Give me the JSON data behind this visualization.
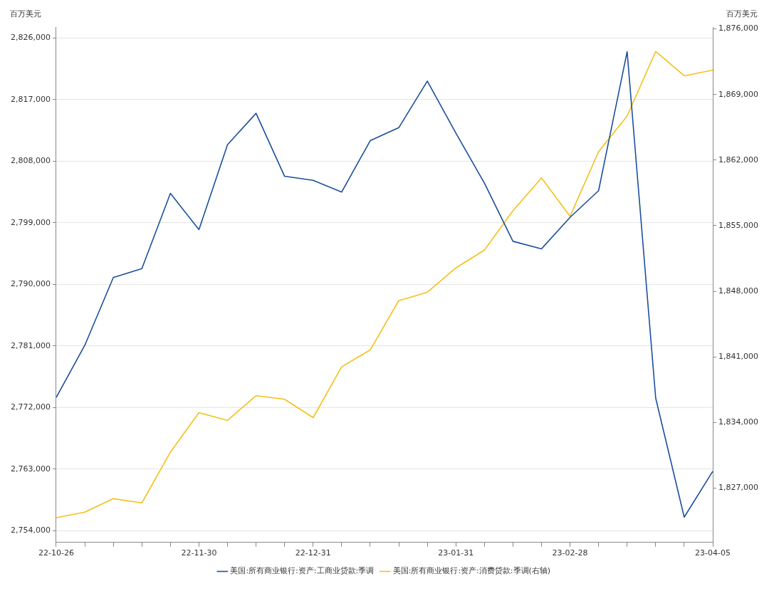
{
  "chart_data": {
    "type": "line",
    "ylabel": "百万美元",
    "y2label": "百万美元",
    "categories": [
      "22-10-26",
      null,
      null,
      null,
      null,
      "22-11-30",
      null,
      null,
      null,
      "22-12-31",
      null,
      null,
      null,
      null,
      "23-01-31",
      null,
      null,
      null,
      "23-02-28",
      null,
      null,
      null,
      null,
      "23-04-05"
    ],
    "series": [
      {
        "name": "美国:所有商业银行:资产:工商业贷款:季调",
        "color": "#1a4f9c",
        "values": [
          2773500,
          2781100,
          2791000,
          2792300,
          2803300,
          2798000,
          2810400,
          2815000,
          2805800,
          2805200,
          2803500,
          2811000,
          2812900,
          2819700,
          2812100,
          2804800,
          2796300,
          2795200,
          2799800,
          2803700,
          2824000,
          2773400,
          2756000,
          2762700
        ]
      },
      {
        "name": "美国:所有商业银行:资产:消费贷款:季调(右轴)",
        "color": "#f3c01b",
        "axis": "y2",
        "values": [
          1823840,
          1824440,
          1825870,
          1825420,
          1830840,
          1835050,
          1834220,
          1836860,
          1836480,
          1834520,
          1839940,
          1841750,
          1847000,
          1847900,
          1850500,
          1852400,
          1856600,
          1860100,
          1856000,
          1862900,
          1866700,
          1873600,
          1871000,
          1871600
        ]
      }
    ],
    "ylim": [
      2752300,
      2827600
    ],
    "yticks": [
      {
        "value": 2754000,
        "label": "2,754,000"
      },
      {
        "value": 2763000,
        "label": "2,763,000"
      },
      {
        "value": 2772000,
        "label": "2,772,000"
      },
      {
        "value": 2781000,
        "label": "2,781,000"
      },
      {
        "value": 2790000,
        "label": "2,790,000"
      },
      {
        "value": 2799000,
        "label": "2,799,000"
      },
      {
        "value": 2808000,
        "label": "2,808,000"
      },
      {
        "value": 2817000,
        "label": "2,817,000"
      },
      {
        "value": 2826000,
        "label": "2,826,000"
      }
    ],
    "y2lim": [
      1821200,
      1876200
    ],
    "y2ticks": [
      {
        "value": 1827000,
        "label": "1,827,000"
      },
      {
        "value": 1834000,
        "label": "1,834,000"
      },
      {
        "value": 1841000,
        "label": "1,841,000"
      },
      {
        "value": 1848000,
        "label": "1,848,000"
      },
      {
        "value": 1855000,
        "label": "1,855,000"
      },
      {
        "value": 1862000,
        "label": "1,862,000"
      },
      {
        "value": 1869000,
        "label": "1,869,000"
      },
      {
        "value": 1876000,
        "label": "1,876,000"
      }
    ],
    "grid": "y",
    "legend": "bottom",
    "marker": "none",
    "line_style": "solid"
  }
}
